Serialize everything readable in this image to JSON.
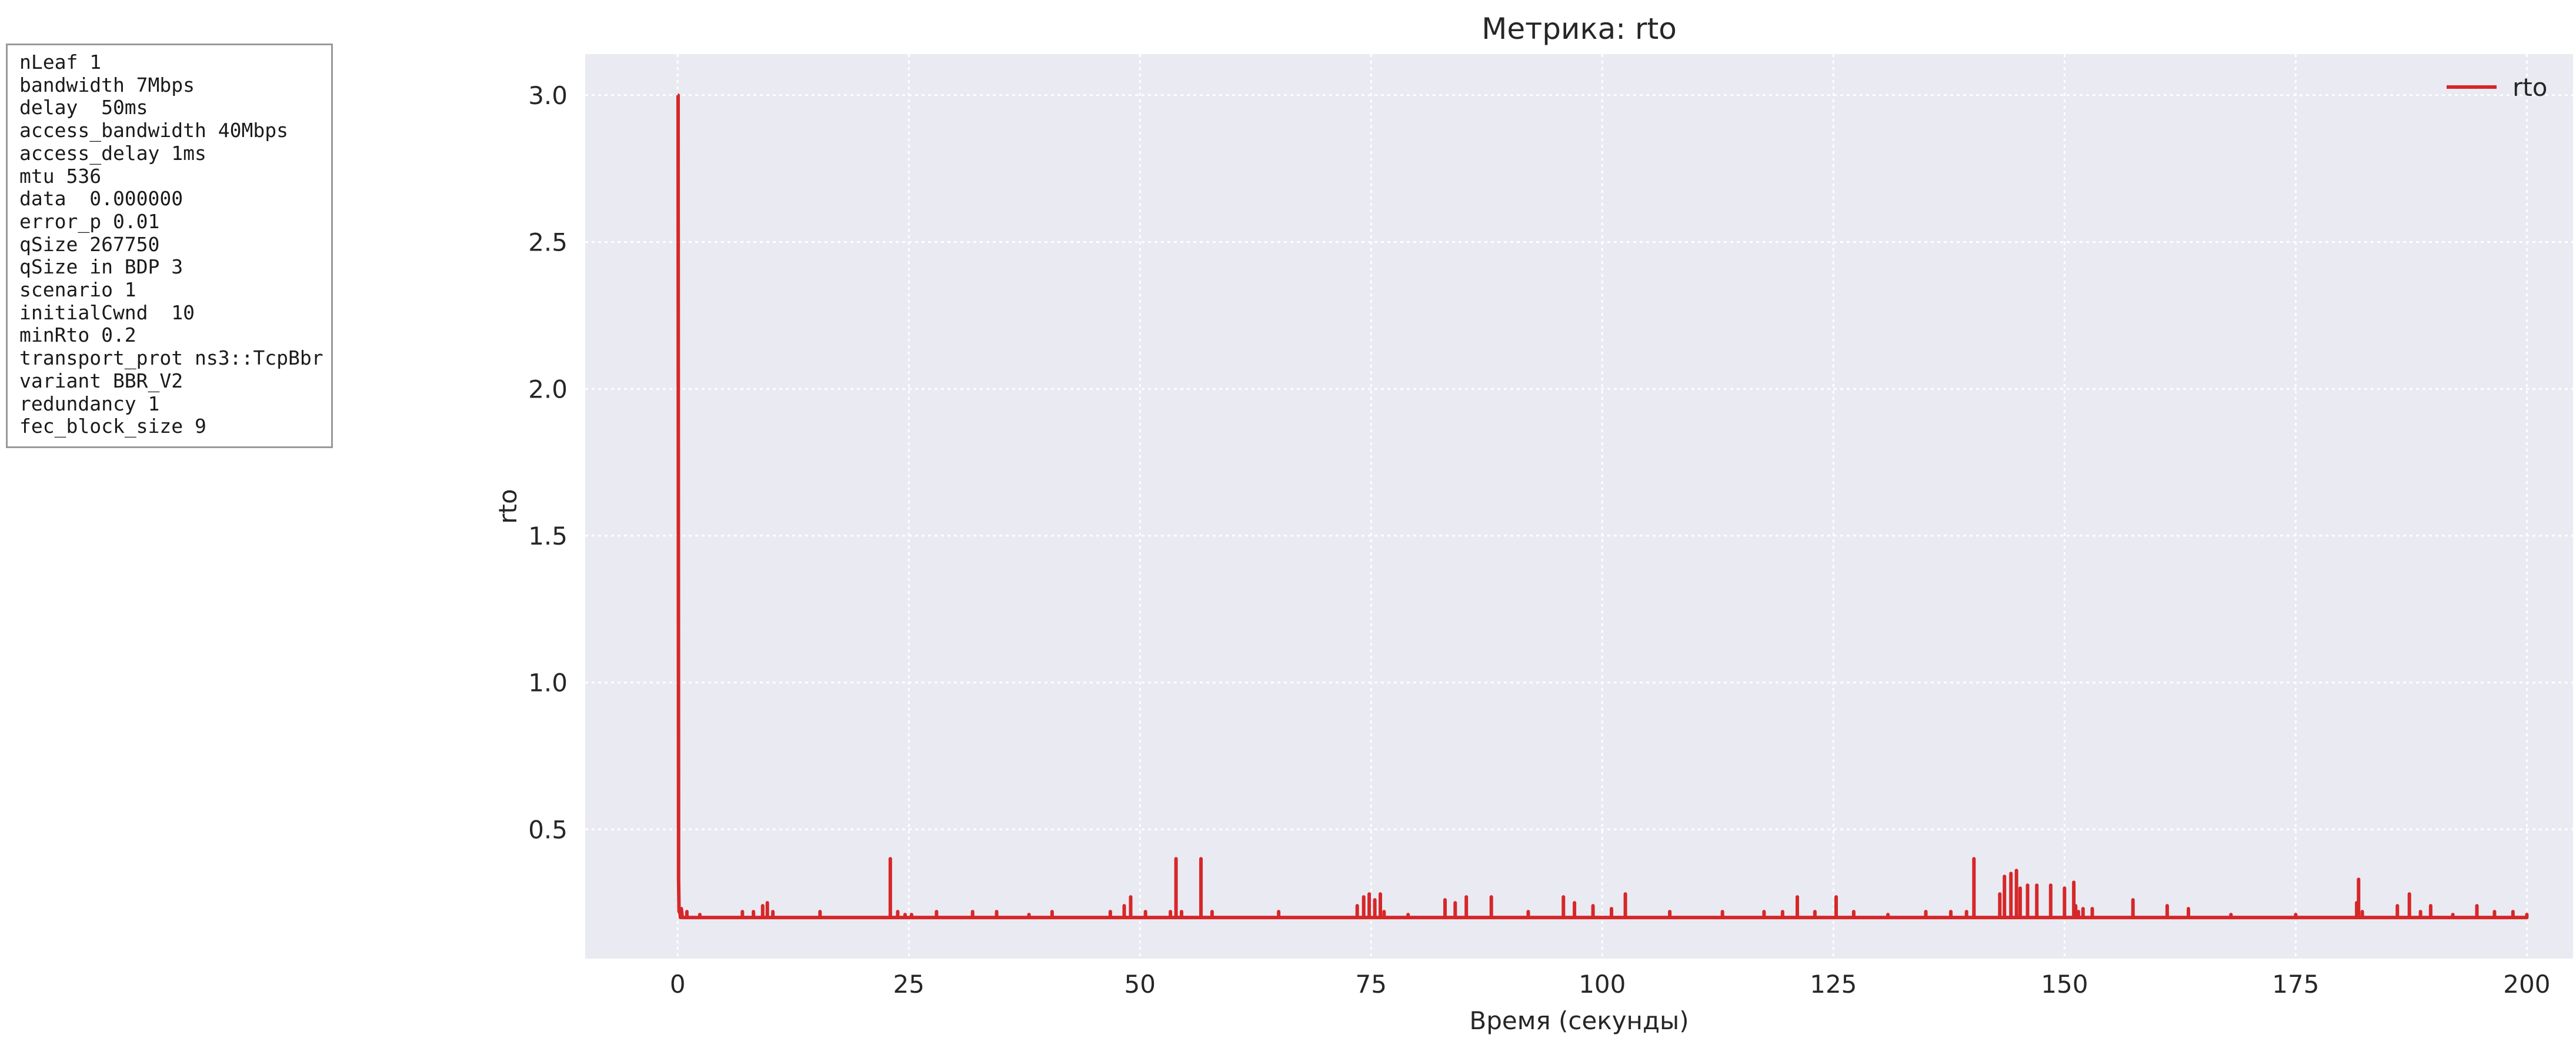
{
  "params": {
    "lines": [
      "nLeaf 1",
      "bandwidth 7Mbps",
      "delay  50ms",
      "access_bandwidth 40Mbps",
      "access_delay 1ms",
      "mtu 536",
      "data  0.000000",
      "error_p 0.01",
      "qSize 267750",
      "qSize in BDP 3",
      "scenario 1",
      "initialCwnd  10",
      "minRto 0.2",
      "transport_prot ns3::TcpBbr",
      "variant BBR_V2",
      "redundancy 1",
      "fec_block_size 9"
    ]
  },
  "chart_data": {
    "type": "line",
    "title": "Метрика: rto",
    "xlabel": "Время (секунды)",
    "ylabel": "rto",
    "xlim": [
      -10,
      205
    ],
    "ylim": [
      0.06,
      3.14
    ],
    "xticks": [
      0,
      25,
      50,
      75,
      100,
      125,
      150,
      175,
      200
    ],
    "xtick_labels": [
      "0",
      "25",
      "50",
      "75",
      "100",
      "125",
      "150",
      "175",
      "200"
    ],
    "yticks": [
      0.5,
      1.0,
      1.5,
      2.0,
      2.5,
      3.0
    ],
    "ytick_labels": [
      "0.5",
      "1.0",
      "1.5",
      "2.0",
      "2.5",
      "3.0"
    ],
    "grid": true,
    "legend_position": "top-right",
    "colors": {
      "line": "#d62728",
      "plot_bg": "#eaeaf2",
      "grid": "#ffffff"
    },
    "series": [
      {
        "name": "rto",
        "baseline": 0.2,
        "x": [
          0,
          0.05,
          0.1,
          0.15,
          0.2,
          0.3,
          0.4,
          0.5,
          1.0,
          2.4,
          7.0,
          8.2,
          9.2,
          9.7,
          10.3,
          15.4,
          23.0,
          23.8,
          24.6,
          25.3,
          28.0,
          31.9,
          34.5,
          38.0,
          40.5,
          46.8,
          48.3,
          49.0,
          50.6,
          53.3,
          53.9,
          54.5,
          56.6,
          57.8,
          65.0,
          73.5,
          74.2,
          74.8,
          75.4,
          76.0,
          76.4,
          79.0,
          83.0,
          84.1,
          85.3,
          88.0,
          92.0,
          95.8,
          97.0,
          99.0,
          101.0,
          102.5,
          107.3,
          113.0,
          117.5,
          119.5,
          121.1,
          123.0,
          125.3,
          127.2,
          130.9,
          135.0,
          137.7,
          139.4,
          140.2,
          142.3,
          143.0,
          143.5,
          144.2,
          144.8,
          145.2,
          146.0,
          147.0,
          148.5,
          150.0,
          151.0,
          151.2,
          151.5,
          152.0,
          153.0,
          157.4,
          161.1,
          163.4,
          168.0,
          175.0,
          181.6,
          181.8,
          182.2,
          186.0,
          187.3,
          188.5,
          189.6,
          192.0,
          194.6,
          196.5,
          198.5,
          200.0
        ],
        "y": [
          3.0,
          3.0,
          0.33,
          0.22,
          0.23,
          0.2,
          0.23,
          0.2,
          0.22,
          0.21,
          0.22,
          0.22,
          0.24,
          0.25,
          0.22,
          0.22,
          0.4,
          0.22,
          0.21,
          0.21,
          0.22,
          0.22,
          0.22,
          0.21,
          0.22,
          0.22,
          0.24,
          0.27,
          0.22,
          0.22,
          0.4,
          0.22,
          0.4,
          0.22,
          0.22,
          0.24,
          0.27,
          0.28,
          0.26,
          0.28,
          0.22,
          0.21,
          0.26,
          0.25,
          0.27,
          0.27,
          0.22,
          0.27,
          0.25,
          0.24,
          0.23,
          0.28,
          0.22,
          0.22,
          0.22,
          0.22,
          0.27,
          0.22,
          0.27,
          0.22,
          0.21,
          0.22,
          0.22,
          0.22,
          0.4,
          0.2,
          0.28,
          0.34,
          0.35,
          0.36,
          0.3,
          0.31,
          0.31,
          0.31,
          0.3,
          0.32,
          0.24,
          0.22,
          0.23,
          0.23,
          0.26,
          0.24,
          0.23,
          0.21,
          0.21,
          0.25,
          0.33,
          0.22,
          0.24,
          0.28,
          0.22,
          0.24,
          0.21,
          0.24,
          0.22,
          0.22,
          0.21
        ]
      }
    ]
  }
}
